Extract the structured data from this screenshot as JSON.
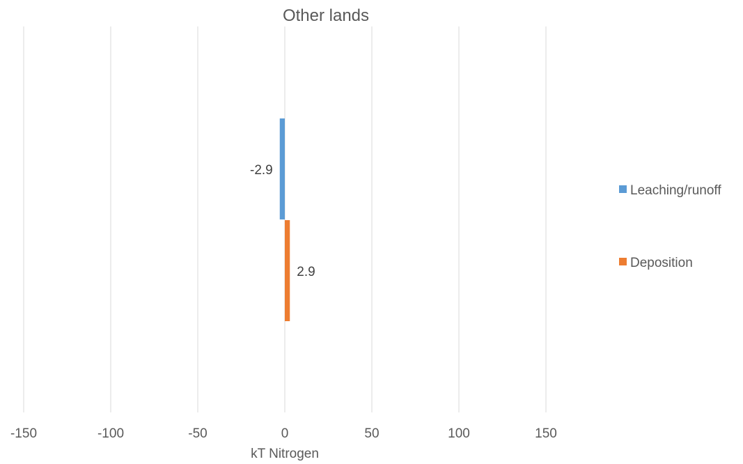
{
  "chart_data": {
    "type": "bar",
    "orientation": "horizontal",
    "title": "Other lands",
    "xlabel": "kT Nitrogen",
    "ylabel": "",
    "xlim": [
      -150,
      150
    ],
    "x_ticks": [
      -150,
      -100,
      -50,
      0,
      50,
      100,
      150
    ],
    "x_tick_labels": [
      "-150",
      "-100",
      "-50",
      "0",
      "50",
      "100",
      "150"
    ],
    "grid": true,
    "legend_position": "right",
    "series": [
      {
        "name": "Leaching/runoff",
        "values": [
          -2.9
        ],
        "data_labels": [
          "-2.9"
        ],
        "color": "#5b9bd5"
      },
      {
        "name": "Deposition",
        "values": [
          2.9
        ],
        "data_labels": [
          "2.9"
        ],
        "color": "#ed7d31"
      }
    ]
  }
}
